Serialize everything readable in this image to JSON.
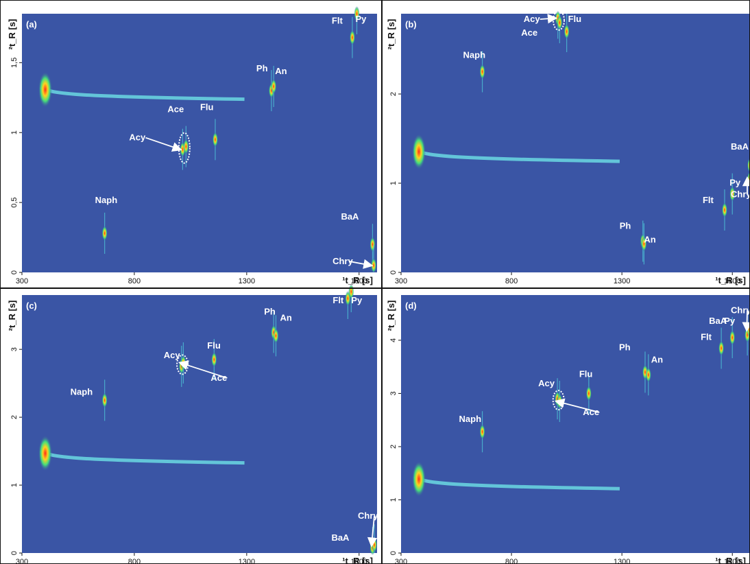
{
  "chart_data": [
    {
      "type": "heatmap",
      "panel_label": "(a)",
      "xlabel": "¹t_R [s]",
      "ylabel": "²t_R [s]",
      "xlim": [
        300,
        1880
      ],
      "ylim": [
        0,
        1.85
      ],
      "xticks": [
        300,
        800,
        1300,
        1800
      ],
      "xtick_labels": [
        "300",
        "800",
        "1300",
        "1800"
      ],
      "yticks": [
        0,
        0.5,
        1,
        1.5
      ],
      "ytick_labels": [
        "0",
        "0,5",
        "1",
        "1,5"
      ],
      "background_color": "#3a55a5",
      "peaks": [
        {
          "label": "Naph",
          "x": 668,
          "y": 0.28
        },
        {
          "label": "Acy",
          "x": 1015,
          "y": 0.88
        },
        {
          "label": "Ace",
          "x": 1030,
          "y": 0.9
        },
        {
          "label": "Flu",
          "x": 1160,
          "y": 0.95
        },
        {
          "label": "Ph",
          "x": 1410,
          "y": 1.3
        },
        {
          "label": "An",
          "x": 1420,
          "y": 1.33
        },
        {
          "label": "Flt",
          "x": 1770,
          "y": 1.68
        },
        {
          "label": "Py",
          "x": 1790,
          "y": 1.85
        },
        {
          "label": "BaA",
          "x": 1860,
          "y": 0.2
        },
        {
          "label": "Chry",
          "x": 1865,
          "y": 0.05
        }
      ]
    },
    {
      "type": "heatmap",
      "panel_label": "(b)",
      "xlabel": "¹t_R [s]",
      "ylabel": "²t_R [s]",
      "xlim": [
        300,
        1880
      ],
      "ylim": [
        0,
        2.9
      ],
      "xticks": [
        300,
        800,
        1300,
        1800
      ],
      "xtick_labels": [
        "300",
        "800",
        "1300",
        "1800"
      ],
      "yticks": [
        0,
        1,
        2
      ],
      "ytick_labels": [
        "0",
        "1",
        "2"
      ],
      "background_color": "#3a55a5",
      "peaks": [
        {
          "label": "Naph",
          "x": 668,
          "y": 2.25
        },
        {
          "label": "Acy",
          "x": 1010,
          "y": 2.85
        },
        {
          "label": "Ace",
          "x": 1018,
          "y": 2.8
        },
        {
          "label": "Flu",
          "x": 1050,
          "y": 2.7
        },
        {
          "label": "Ph",
          "x": 1395,
          "y": 0.35
        },
        {
          "label": "An",
          "x": 1400,
          "y": 0.32
        },
        {
          "label": "Flt",
          "x": 1765,
          "y": 0.7
        },
        {
          "label": "Py",
          "x": 1800,
          "y": 0.88
        },
        {
          "label": "BaA",
          "x": 1880,
          "y": 1.2
        },
        {
          "label": "Chry",
          "x": 1880,
          "y": 1.05
        }
      ]
    },
    {
      "type": "heatmap",
      "panel_label": "(c)",
      "xlabel": "¹t_R [s]",
      "ylabel": "²t_R [s]",
      "xlim": [
        300,
        1880
      ],
      "ylim": [
        0,
        3.8
      ],
      "xticks": [
        300,
        800,
        1300,
        1800
      ],
      "xtick_labels": [
        "300",
        "800",
        "1300",
        "1800"
      ],
      "yticks": [
        0,
        1,
        2,
        3
      ],
      "ytick_labels": [
        "0",
        "1",
        "2",
        "3"
      ],
      "background_color": "#3a55a5",
      "peaks": [
        {
          "label": "Naph",
          "x": 668,
          "y": 2.25
        },
        {
          "label": "Acy",
          "x": 1010,
          "y": 2.75
        },
        {
          "label": "Ace",
          "x": 1018,
          "y": 2.8
        },
        {
          "label": "Flu",
          "x": 1155,
          "y": 2.85
        },
        {
          "label": "Ph",
          "x": 1420,
          "y": 3.25
        },
        {
          "label": "An",
          "x": 1430,
          "y": 3.2
        },
        {
          "label": "Flt",
          "x": 1750,
          "y": 3.75
        },
        {
          "label": "Py",
          "x": 1765,
          "y": 3.85
        },
        {
          "label": "BaA",
          "x": 1860,
          "y": 0.08
        },
        {
          "label": "Chry",
          "x": 1868,
          "y": 0.12
        }
      ]
    },
    {
      "type": "heatmap",
      "panel_label": "(d)",
      "xlabel": "¹t_R [s]",
      "ylabel": "²t_R [s]",
      "xlim": [
        300,
        1880
      ],
      "ylim": [
        0,
        4.85
      ],
      "xticks": [
        300,
        800,
        1300,
        1800
      ],
      "xtick_labels": [
        "300",
        "800",
        "1300",
        "1800"
      ],
      "yticks": [
        0,
        1,
        2,
        3,
        4
      ],
      "ytick_labels": [
        "0",
        "1",
        "2",
        "3",
        "4"
      ],
      "background_color": "#3a55a5",
      "peaks": [
        {
          "label": "Naph",
          "x": 668,
          "y": 2.28
        },
        {
          "label": "Acy",
          "x": 1008,
          "y": 2.9
        },
        {
          "label": "Ace",
          "x": 1018,
          "y": 2.85
        },
        {
          "label": "Flu",
          "x": 1150,
          "y": 3.0
        },
        {
          "label": "Ph",
          "x": 1405,
          "y": 3.4
        },
        {
          "label": "An",
          "x": 1420,
          "y": 3.35
        },
        {
          "label": "Flt",
          "x": 1750,
          "y": 3.85
        },
        {
          "label": "Py",
          "x": 1800,
          "y": 4.05
        },
        {
          "label": "BaA",
          "x": 1868,
          "y": 4.1
        },
        {
          "label": "Chry",
          "x": 1878,
          "y": 4.2
        }
      ]
    }
  ]
}
